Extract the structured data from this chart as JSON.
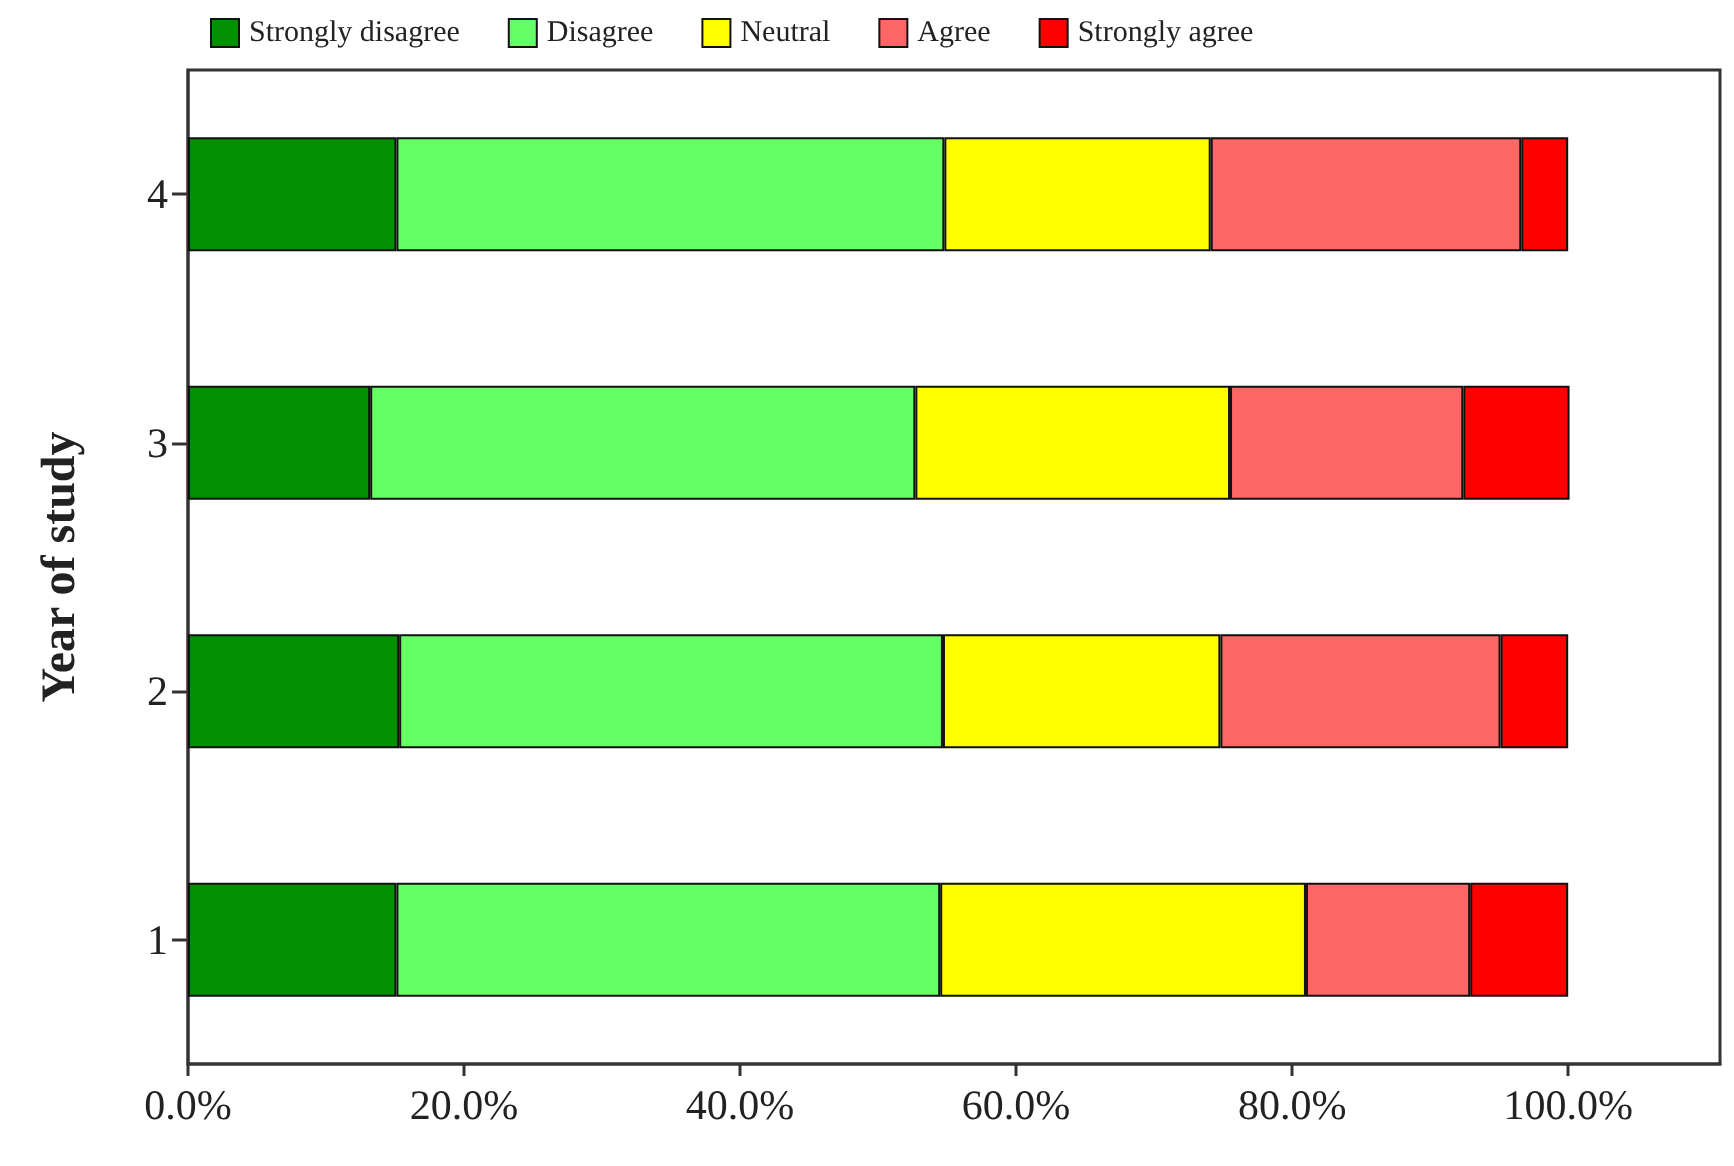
{
  "chart_data": {
    "type": "bar",
    "orientation": "horizontal",
    "stacked": true,
    "ylabel": "Year of study",
    "categories": [
      "4",
      "3",
      "2",
      "1"
    ],
    "series": [
      {
        "name": "Strongly disagree",
        "color": "#009000",
        "values": [
          15.1,
          13.2,
          15.3,
          15.1
        ]
      },
      {
        "name": "Disagree",
        "color": "#66ff66",
        "values": [
          39.7,
          39.5,
          39.4,
          39.4
        ]
      },
      {
        "name": "Neutral",
        "color": "#ffff00",
        "values": [
          19.3,
          22.8,
          20.1,
          26.5
        ]
      },
      {
        "name": "Agree",
        "color": "#ff6666",
        "values": [
          22.5,
          16.9,
          20.3,
          11.9
        ]
      },
      {
        "name": "Strongly agree",
        "color": "#ff0000",
        "values": [
          3.4,
          7.7,
          4.9,
          7.1
        ]
      }
    ],
    "xlim": [
      0,
      111
    ],
    "xticks": [
      {
        "value": 0,
        "label": "0.0%"
      },
      {
        "value": 20,
        "label": "20.0%"
      },
      {
        "value": 40,
        "label": "40.0%"
      },
      {
        "value": 60,
        "label": "60.0%"
      },
      {
        "value": 80,
        "label": "80.0%"
      },
      {
        "value": 100,
        "label": "100.0%"
      }
    ],
    "grid": false,
    "legend": "top"
  }
}
